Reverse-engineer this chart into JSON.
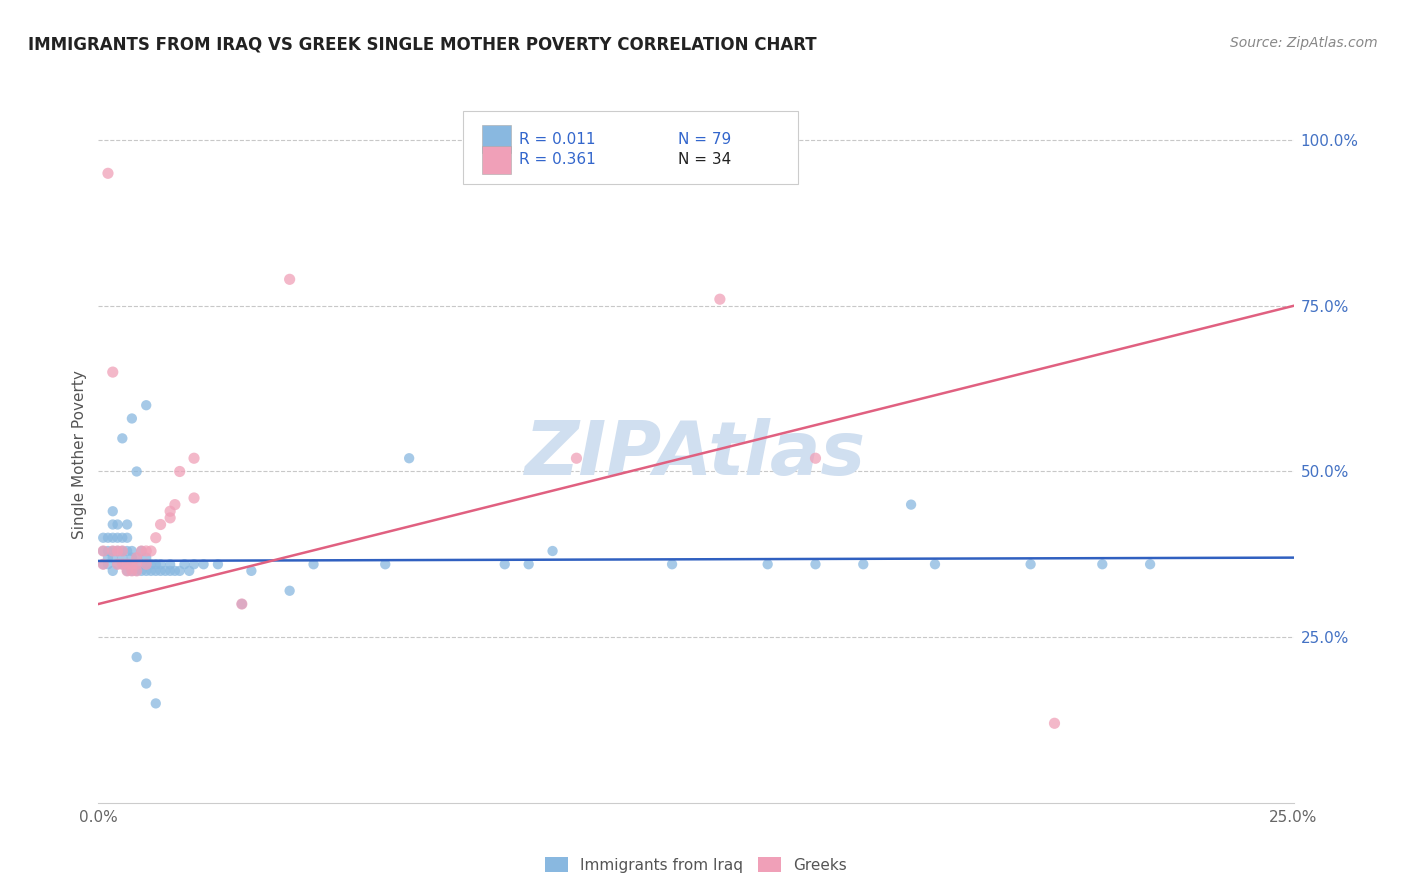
{
  "title": "IMMIGRANTS FROM IRAQ VS GREEK SINGLE MOTHER POVERTY CORRELATION CHART",
  "source": "Source: ZipAtlas.com",
  "ylabel": "Single Mother Poverty",
  "xlim": [
    0.0,
    0.25
  ],
  "ylim": [
    0.0,
    1.05
  ],
  "series1_color": "#89b8e0",
  "series2_color": "#f0a0b8",
  "watermark": "ZIPAtlas",
  "watermark_color": "#d0dff0",
  "blue_line_color": "#3060c0",
  "pink_line_color": "#e06080",
  "legend_bg": "#ffffff",
  "legend_border": "#dddddd",
  "grid_color": "#c8c8c8",
  "r1_text": "R = 0.011",
  "n1_text": "N = 79",
  "r2_text": "R = 0.361",
  "n2_text": "N = 34",
  "legend1_label": "Immigrants from Iraq",
  "legend2_label": "Greeks",
  "blue_line_x0": 0.0,
  "blue_line_y0": 0.365,
  "blue_line_x1": 0.25,
  "blue_line_y1": 0.37,
  "pink_line_x0": 0.0,
  "pink_line_y0": 0.3,
  "pink_line_x1": 0.25,
  "pink_line_y1": 0.75,
  "s1_x": [
    0.001,
    0.001,
    0.001,
    0.002,
    0.002,
    0.002,
    0.002,
    0.003,
    0.003,
    0.003,
    0.003,
    0.003,
    0.003,
    0.004,
    0.004,
    0.004,
    0.004,
    0.005,
    0.005,
    0.005,
    0.005,
    0.005,
    0.006,
    0.006,
    0.006,
    0.006,
    0.006,
    0.007,
    0.007,
    0.007,
    0.007,
    0.007,
    0.008,
    0.008,
    0.008,
    0.009,
    0.009,
    0.009,
    0.01,
    0.01,
    0.01,
    0.01,
    0.011,
    0.011,
    0.012,
    0.012,
    0.013,
    0.013,
    0.014,
    0.015,
    0.015,
    0.016,
    0.017,
    0.018,
    0.019,
    0.02,
    0.022,
    0.025,
    0.03,
    0.032,
    0.04,
    0.045,
    0.06,
    0.065,
    0.085,
    0.09,
    0.095,
    0.12,
    0.14,
    0.15,
    0.16,
    0.175,
    0.195,
    0.21,
    0.22,
    0.008,
    0.01,
    0.012,
    0.17
  ],
  "s1_y": [
    0.36,
    0.38,
    0.4,
    0.36,
    0.37,
    0.38,
    0.4,
    0.35,
    0.37,
    0.38,
    0.4,
    0.42,
    0.44,
    0.36,
    0.38,
    0.4,
    0.42,
    0.36,
    0.37,
    0.38,
    0.4,
    0.55,
    0.35,
    0.36,
    0.38,
    0.4,
    0.42,
    0.35,
    0.36,
    0.37,
    0.38,
    0.58,
    0.35,
    0.37,
    0.5,
    0.35,
    0.36,
    0.38,
    0.35,
    0.36,
    0.37,
    0.6,
    0.35,
    0.36,
    0.35,
    0.36,
    0.35,
    0.36,
    0.35,
    0.35,
    0.36,
    0.35,
    0.35,
    0.36,
    0.35,
    0.36,
    0.36,
    0.36,
    0.3,
    0.35,
    0.32,
    0.36,
    0.36,
    0.52,
    0.36,
    0.36,
    0.38,
    0.36,
    0.36,
    0.36,
    0.36,
    0.36,
    0.36,
    0.36,
    0.36,
    0.22,
    0.18,
    0.15,
    0.45
  ],
  "s2_x": [
    0.001,
    0.001,
    0.002,
    0.003,
    0.003,
    0.004,
    0.004,
    0.005,
    0.005,
    0.006,
    0.006,
    0.007,
    0.007,
    0.008,
    0.008,
    0.008,
    0.009,
    0.01,
    0.01,
    0.011,
    0.012,
    0.013,
    0.015,
    0.015,
    0.016,
    0.017,
    0.02,
    0.02,
    0.03,
    0.04,
    0.1,
    0.13,
    0.15,
    0.2
  ],
  "s2_y": [
    0.36,
    0.38,
    0.95,
    0.65,
    0.38,
    0.36,
    0.38,
    0.36,
    0.38,
    0.35,
    0.36,
    0.35,
    0.36,
    0.35,
    0.36,
    0.37,
    0.38,
    0.36,
    0.38,
    0.38,
    0.4,
    0.42,
    0.43,
    0.44,
    0.45,
    0.5,
    0.46,
    0.52,
    0.3,
    0.79,
    0.52,
    0.76,
    0.52,
    0.12
  ]
}
